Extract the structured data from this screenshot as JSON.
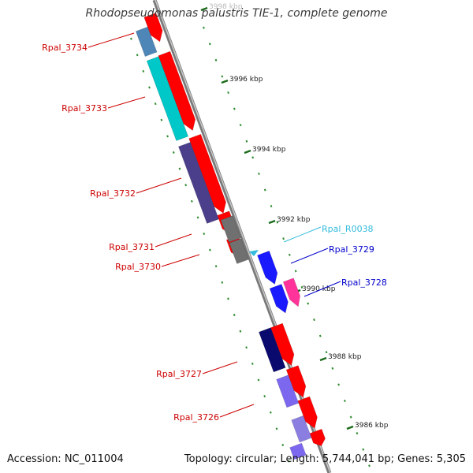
{
  "title": "Rhodopseudomonas palustris TIE-1, complete genome",
  "footer": {
    "accession": "Accession: NC_011004",
    "summary": "Topology: circular; Length: 5,744,041 bp; Genes: 5,305"
  },
  "scale_labels": [
    "3998 kbp",
    "3996 kbp",
    "3994 kbp",
    "3992 kbp",
    "3990 kbp",
    "3988 kbp",
    "3986 kbp"
  ],
  "colors": {
    "backbone": "#8a8a8a",
    "dotted_axis": "#2e8b2e",
    "cds_strand": "#ff0000",
    "left_label": "#cc0000",
    "right_label_blue": "#0000cc",
    "right_label_cyan": "#33bbdd"
  },
  "genes": [
    {
      "name": "Rpal_3734",
      "color": "#4f86b8",
      "strand": "inner",
      "labeled": true
    },
    {
      "name": "Rpal_3733",
      "color": "#00c8c8",
      "strand": "inner",
      "labeled": true
    },
    {
      "name": "Rpal_3732",
      "color": "#4b3f8c",
      "strand": "inner",
      "labeled": true
    },
    {
      "name": "Rpal_3731",
      "color": "#707070",
      "strand": "inner",
      "labeled": true
    },
    {
      "name": "Rpal_3730",
      "color": "#707070",
      "strand": "inner",
      "labeled": true
    },
    {
      "name": "Rpal_R0038",
      "color": "#33bbdd",
      "strand": "outer",
      "labeled": true
    },
    {
      "name": "Rpal_3729",
      "color": "#1a1aff",
      "strand": "outer",
      "labeled": true
    },
    {
      "name": "Rpal_3728",
      "color": "#1a1aff",
      "strand": "outer",
      "labeled": true
    },
    {
      "name": "Rpal_3727",
      "color": "#0a0a6e",
      "strand": "inner",
      "labeled": true
    },
    {
      "name": "Rpal_3726",
      "color": "#7b68ee",
      "strand": "inner",
      "labeled": true
    }
  ],
  "extra_features": [
    {
      "color": "#ff3399",
      "strand": "outer"
    },
    {
      "color": "#8a7fe0",
      "strand": "inner"
    }
  ]
}
